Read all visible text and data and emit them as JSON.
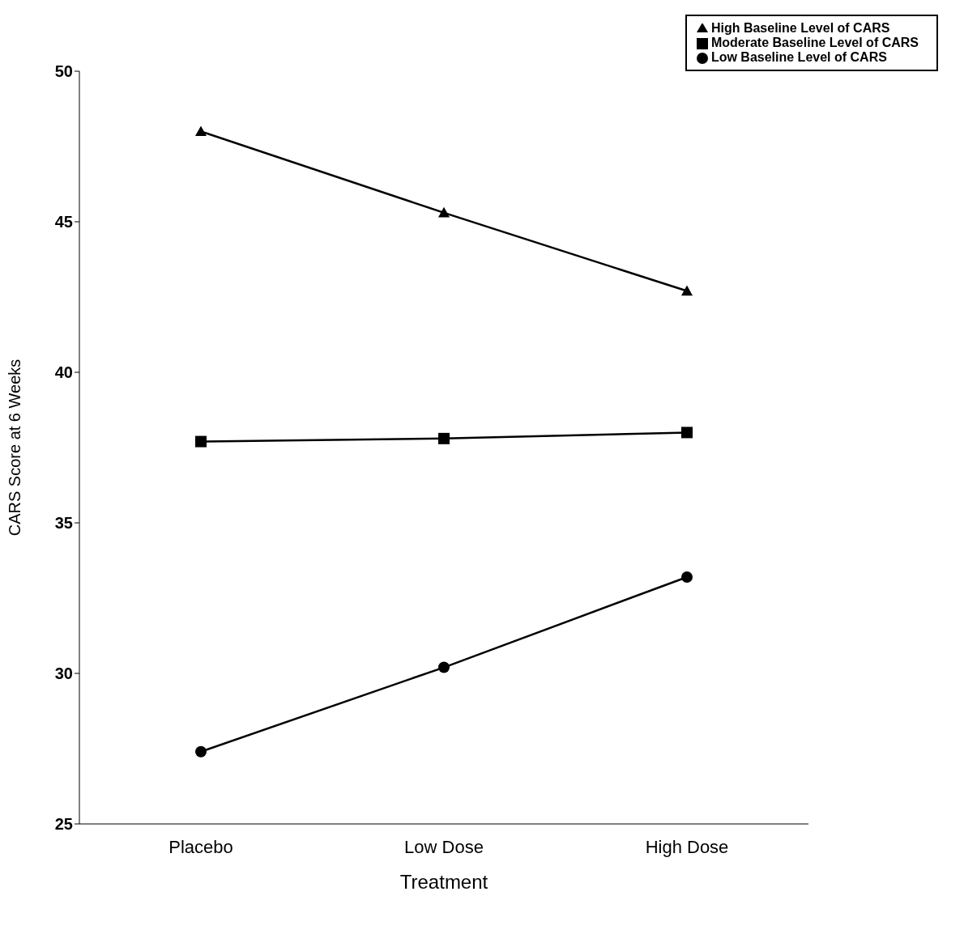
{
  "chart_data": {
    "type": "line",
    "xlabel": "Treatment",
    "ylabel": "CARS Score at 6 Weeks",
    "categories": [
      "Placebo",
      "Low Dose",
      "High Dose"
    ],
    "series": [
      {
        "name": "High Baseline Level of CARS",
        "color": "#000000",
        "marker": "triangle",
        "values": [
          48.0,
          45.3,
          42.7
        ]
      },
      {
        "name": "Moderate Baseline Level of CARS",
        "color": "#000000",
        "marker": "square",
        "values": [
          37.7,
          37.8,
          38.0
        ]
      },
      {
        "name": "Low Baseline Level of CARS",
        "color": "#000000",
        "marker": "circle",
        "values": [
          27.4,
          30.2,
          33.2
        ]
      }
    ],
    "ylim": [
      25,
      50
    ],
    "yticks": [
      25,
      30,
      35,
      40,
      45,
      50
    ],
    "grid": false,
    "legend": "top right",
    "line_style": "solid"
  }
}
